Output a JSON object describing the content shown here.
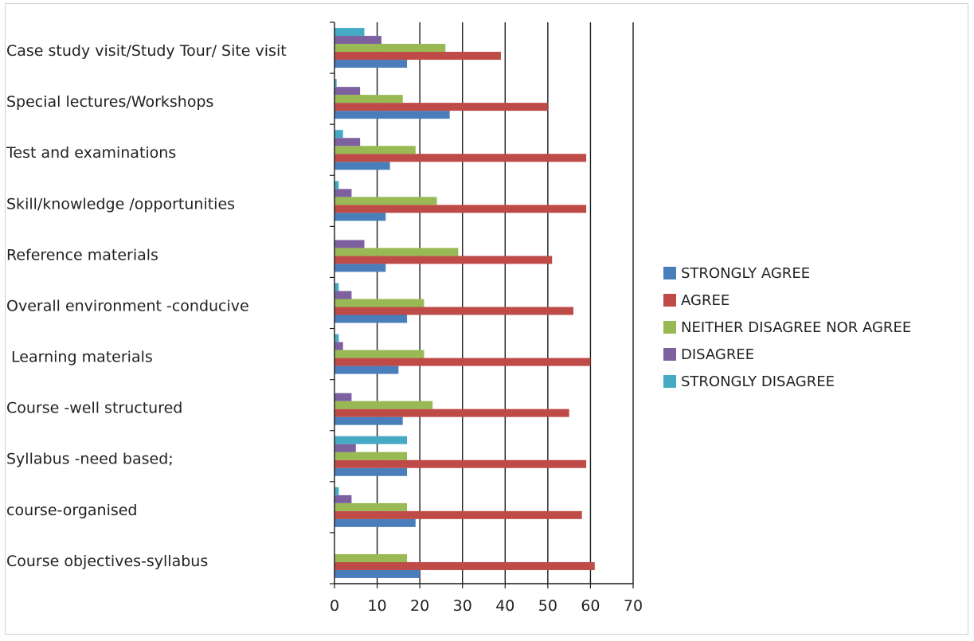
{
  "chart_data": {
    "type": "bar",
    "orientation": "horizontal",
    "title": "",
    "xlabel": "",
    "ylabel": "",
    "xlim": [
      0,
      70
    ],
    "x_ticks": [
      "0",
      "10",
      "20",
      "30",
      "40",
      "50",
      "60",
      "70"
    ],
    "grid": "vertical major gridlines",
    "legend_position": "right",
    "categories": [
      "Case study visit/Study Tour/ Site visit",
      "Special lectures/Workshops",
      "Test and examinations",
      "Skill/knowledge /opportunities",
      "Reference materials",
      "Overall environment -conducive",
      " Learning materials",
      "Course -well structured",
      "Syllabus -need based;",
      "course-organised",
      "Course objectives-syllabus"
    ],
    "series": [
      {
        "name": "STRONGLY AGREE",
        "color": "#4a7ebb",
        "values": [
          17,
          27,
          13,
          12,
          12,
          17,
          15,
          16,
          17,
          19,
          20
        ]
      },
      {
        "name": "AGREE",
        "color": "#be4b48",
        "values": [
          39,
          50,
          59,
          59,
          51,
          56,
          60,
          55,
          59,
          58,
          61
        ]
      },
      {
        "name": "NEITHER DISAGREE NOR AGREE",
        "color": "#98b954",
        "values": [
          26,
          16,
          19,
          24,
          29,
          21,
          21,
          23,
          17,
          17,
          17
        ]
      },
      {
        "name": "DISAGREE",
        "color": "#7d60a0",
        "values": [
          11,
          6,
          6,
          4,
          7,
          4,
          2,
          4,
          5,
          4,
          0
        ]
      },
      {
        "name": "STRONGLY DISAGREE",
        "color": "#46aac5",
        "values": [
          7,
          0.5,
          2,
          1,
          0,
          1,
          1,
          0,
          17,
          1,
          0
        ]
      }
    ]
  }
}
